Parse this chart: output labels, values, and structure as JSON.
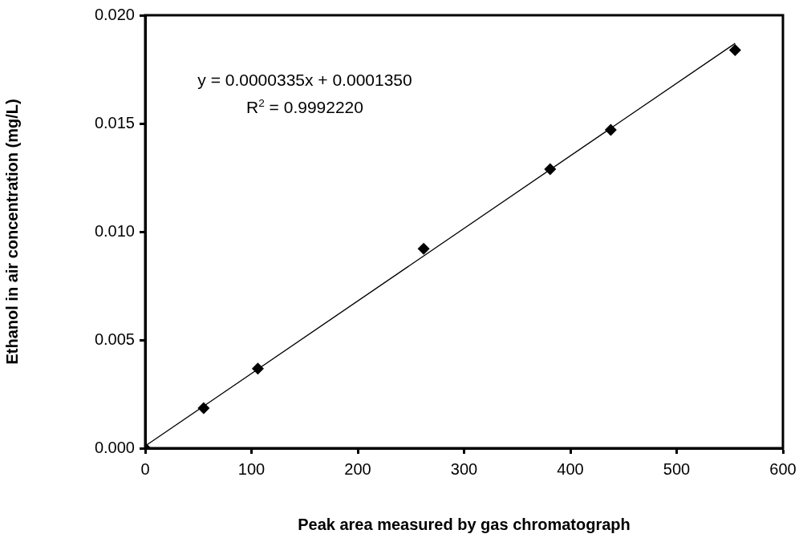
{
  "chart_data": {
    "type": "scatter",
    "xlabel": "Peak area measured by gas chromatograph",
    "ylabel": "Ethanol in air concentration (mg/L)",
    "annotations": [
      "y = 0.0000335x + 0.0001350",
      "R$^{2}$ = 0.9992220"
    ],
    "series": [
      {
        "type": "scatter",
        "color": "#000000",
        "x": [
          0,
          55,
          106,
          262,
          381,
          438,
          555
        ],
        "values": [
          0,
          0.00185,
          0.00368,
          0.00921,
          0.01289,
          0.0147,
          0.01839
        ],
        "marker": "diamond"
      },
      {
        "type": "line",
        "color": "#000000",
        "x": [
          0,
          555
        ],
        "values": [
          0.0001,
          0.0187
        ],
        "marker": "none",
        "line_style": "solid"
      }
    ],
    "xlim": [
      0,
      600
    ],
    "xticks": [
      0,
      100,
      200,
      300,
      400,
      500,
      600
    ],
    "ylim": [
      0,
      0.02
    ],
    "yticks": [
      {
        "value": 0,
        "label": "0.000"
      },
      {
        "value": 0.005,
        "label": "0.005"
      },
      {
        "value": 0.01,
        "label": "0.010"
      },
      {
        "value": 0.015,
        "label": "0.015"
      },
      {
        "value": 0.02,
        "label": "0.020"
      }
    ],
    "grid": false,
    "legend": false
  }
}
